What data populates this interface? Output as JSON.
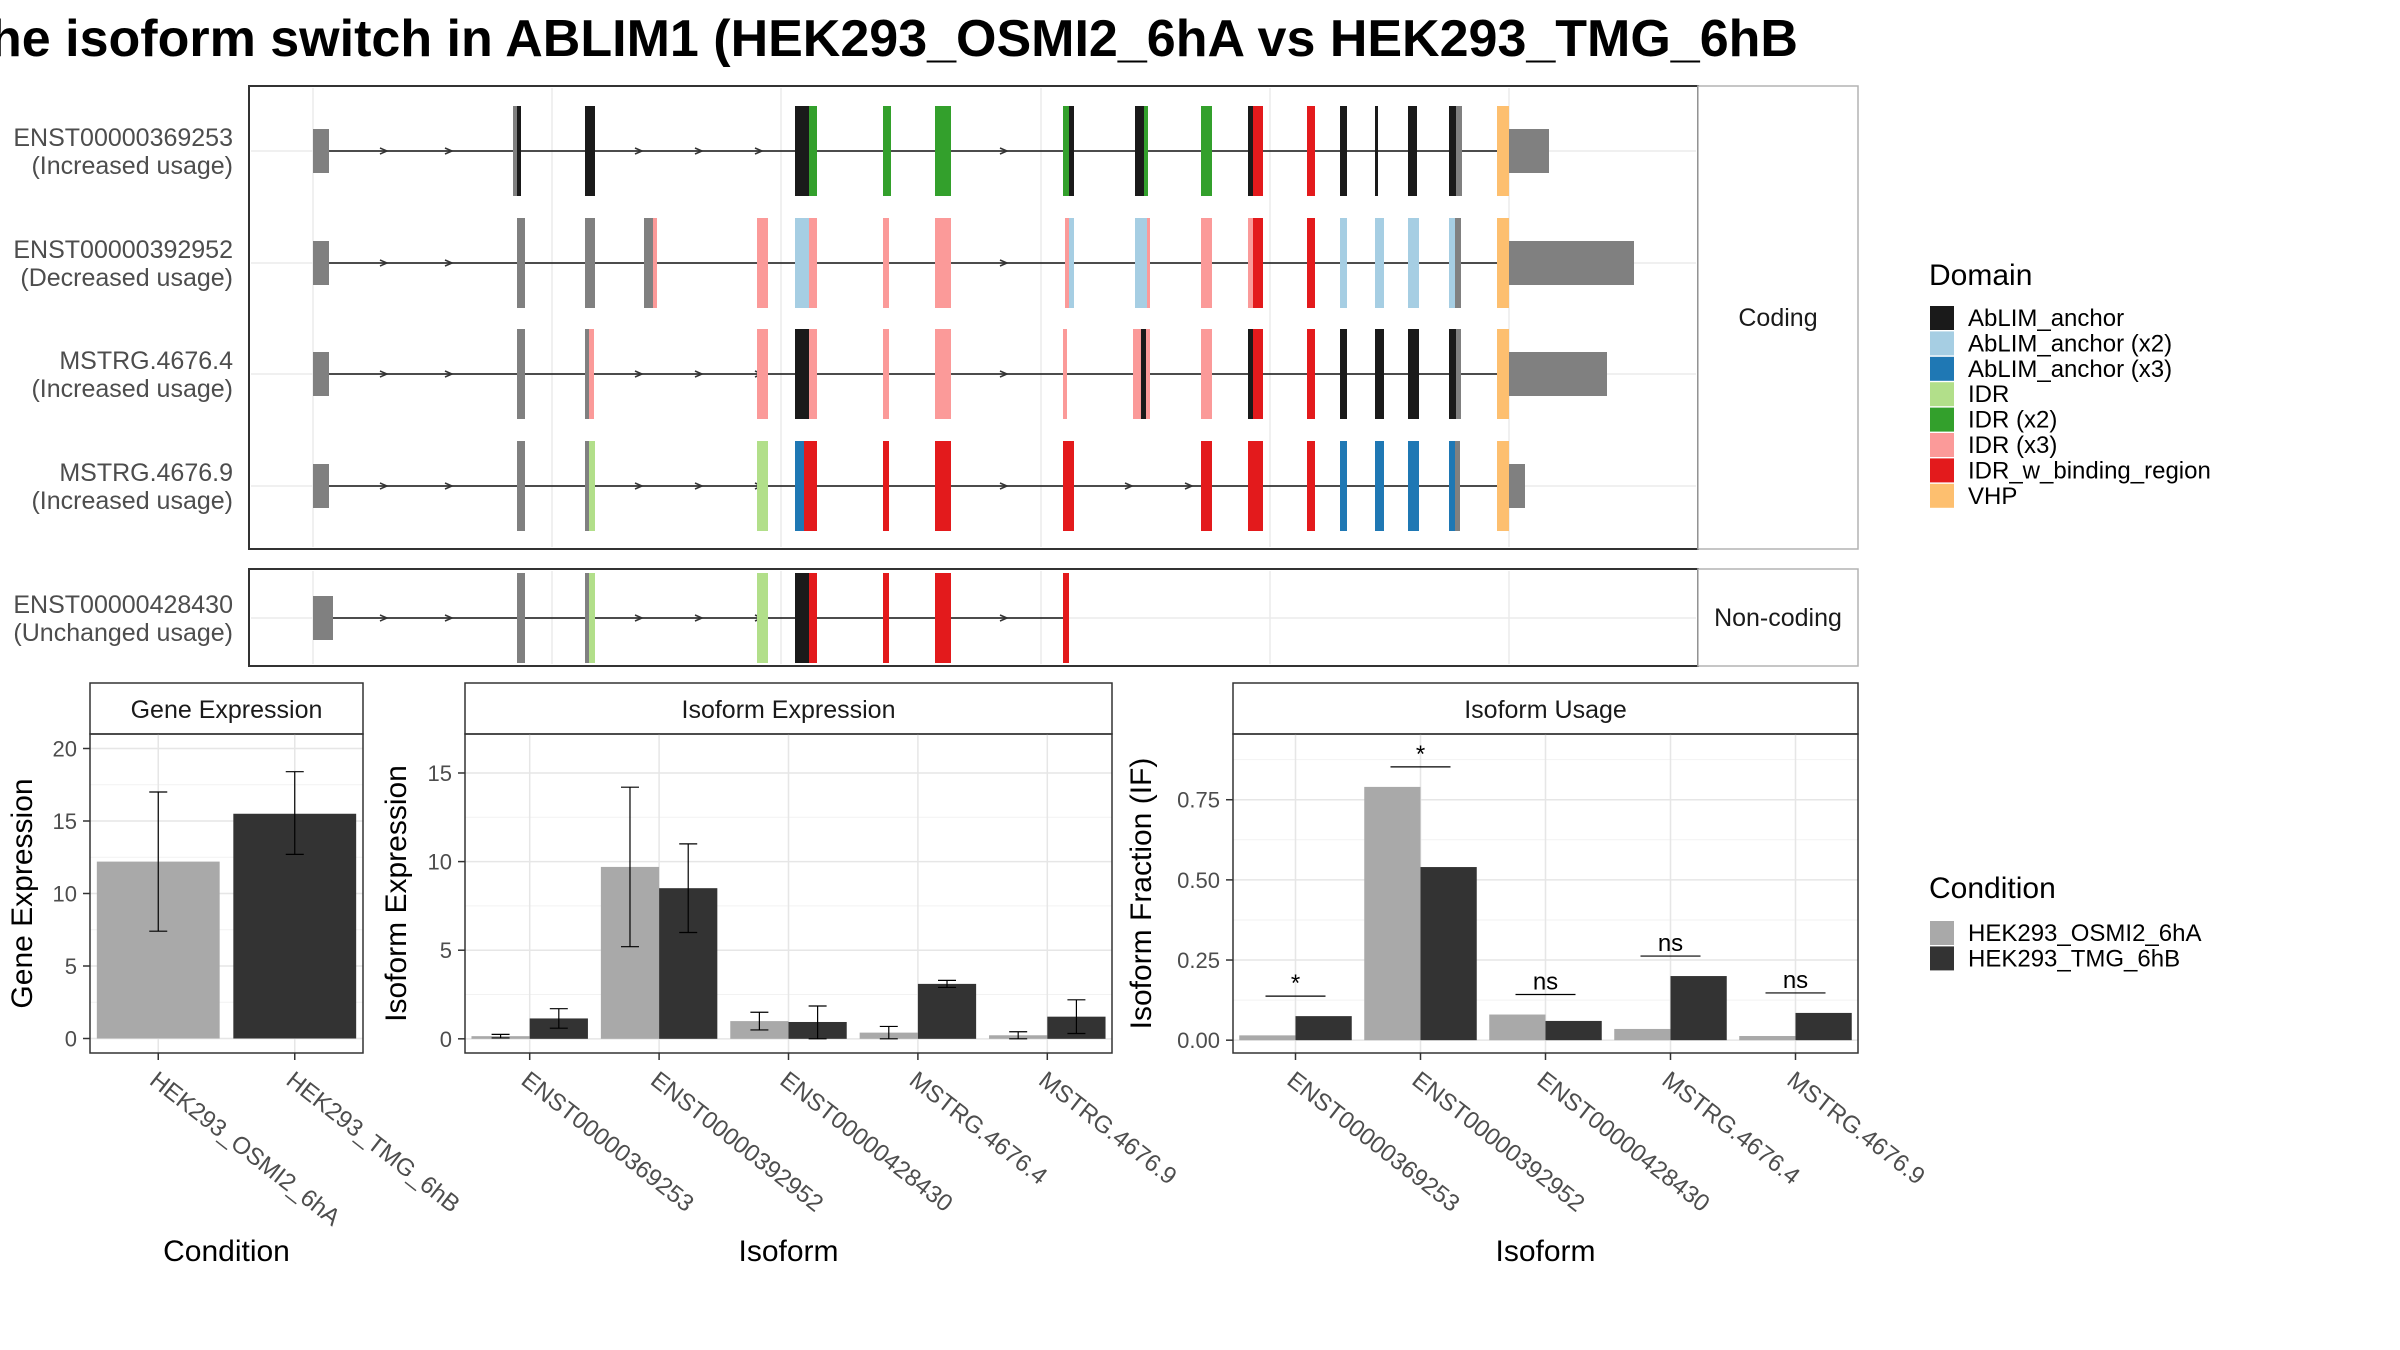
{
  "title": "he isoform switch in ABLIM1 (HEK293_OSMI2_6hA vs HEK293_TMG_6hB",
  "strips": {
    "coding": "Coding",
    "noncoding": "Non-coding"
  },
  "colors": {
    "AbLIM_anchor": "#1a1a1a",
    "AbLIM_anchor (x2)": "#a6cee3",
    "AbLIM_anchor (x3)": "#1f78b4",
    "IDR": "#b2df8a",
    "IDR (x2)": "#33a02c",
    "IDR (x3)": "#fb9a99",
    "IDR_w_binding_region": "#e31a1c",
    "VHP": "#fdbf6f",
    "exon": "#808080",
    "cond_a": "#a9a9a9",
    "cond_b": "#333333"
  },
  "transcripts": [
    {
      "id": "ENST00000369253",
      "status": "(Increased usage)",
      "group": "coding"
    },
    {
      "id": "ENST00000392952",
      "status": "(Decreased usage)",
      "group": "coding"
    },
    {
      "id": "MSTRG.4676.4",
      "status": "(Increased usage)",
      "group": "coding"
    },
    {
      "id": "MSTRG.4676.9",
      "status": "(Increased usage)",
      "group": "coding"
    },
    {
      "id": "ENST00000428430",
      "status": "(Unchanged usage)",
      "group": "noncoding"
    }
  ],
  "legends": {
    "domain": {
      "title": "Domain",
      "items": [
        "AbLIM_anchor",
        "AbLIM_anchor (x2)",
        "AbLIM_anchor (x3)",
        "IDR",
        "IDR (x2)",
        "IDR (x3)",
        "IDR_w_binding_region",
        "VHP"
      ]
    },
    "condition": {
      "title": "Condition",
      "items": [
        "HEK293_OSMI2_6hA",
        "HEK293_TMG_6hB"
      ]
    }
  },
  "chart_data": [
    {
      "type": "bar",
      "title": "Gene Expression",
      "xlabel": "Condition",
      "ylabel": "Gene Expression",
      "categories": [
        "HEK293_OSMI2_6hA",
        "HEK293_TMG_6hB"
      ],
      "values": [
        12.2,
        15.5
      ],
      "errors": [
        [
          7.4,
          17.0
        ],
        [
          12.7,
          18.4
        ]
      ],
      "ylim": [
        -1,
        21
      ],
      "yticks": [
        "0",
        "5",
        "10",
        "15",
        "20"
      ],
      "grid": true
    },
    {
      "type": "bar",
      "title": "Isoform Expression",
      "xlabel": "Isoform",
      "ylabel": "Isoform Expression",
      "categories": [
        "ENST00000369253",
        "ENST00000392952",
        "ENST00000428430",
        "MSTRG.4676.4",
        "MSTRG.4676.9"
      ],
      "series": [
        {
          "name": "HEK293_OSMI2_6hA",
          "values": [
            0.15,
            9.7,
            1.0,
            0.35,
            0.2
          ],
          "errors": [
            [
              0.05,
              0.25
            ],
            [
              5.2,
              14.2
            ],
            [
              0.5,
              1.5
            ],
            [
              0.0,
              0.7
            ],
            [
              0.0,
              0.4
            ]
          ]
        },
        {
          "name": "HEK293_TMG_6hB",
          "values": [
            1.15,
            8.5,
            0.95,
            3.1,
            1.25
          ],
          "errors": [
            [
              0.6,
              1.7
            ],
            [
              6.0,
              11.0
            ],
            [
              0.0,
              1.85
            ],
            [
              2.9,
              3.3
            ],
            [
              0.3,
              2.2
            ]
          ]
        }
      ],
      "ylim": [
        -0.8,
        17.2
      ],
      "yticks": [
        "0",
        "5",
        "10",
        "15"
      ],
      "grid": true
    },
    {
      "type": "bar",
      "title": "Isoform Usage",
      "xlabel": "Isoform",
      "ylabel": "Isoform Fraction (IF)",
      "categories": [
        "ENST00000369253",
        "ENST00000392952",
        "ENST00000428430",
        "MSTRG.4676.4",
        "MSTRG.4676.9"
      ],
      "series": [
        {
          "name": "HEK293_OSMI2_6hA",
          "values": [
            0.015,
            0.79,
            0.08,
            0.035,
            0.013
          ]
        },
        {
          "name": "HEK293_TMG_6hB",
          "values": [
            0.075,
            0.54,
            0.06,
            0.2,
            0.085
          ]
        }
      ],
      "significance": [
        "*",
        "*",
        "ns",
        "ns",
        "ns"
      ],
      "ylim": [
        -0.04,
        0.955
      ],
      "yticks": [
        "0.00",
        "0.25",
        "0.50",
        "0.75"
      ],
      "grid": true
    }
  ]
}
